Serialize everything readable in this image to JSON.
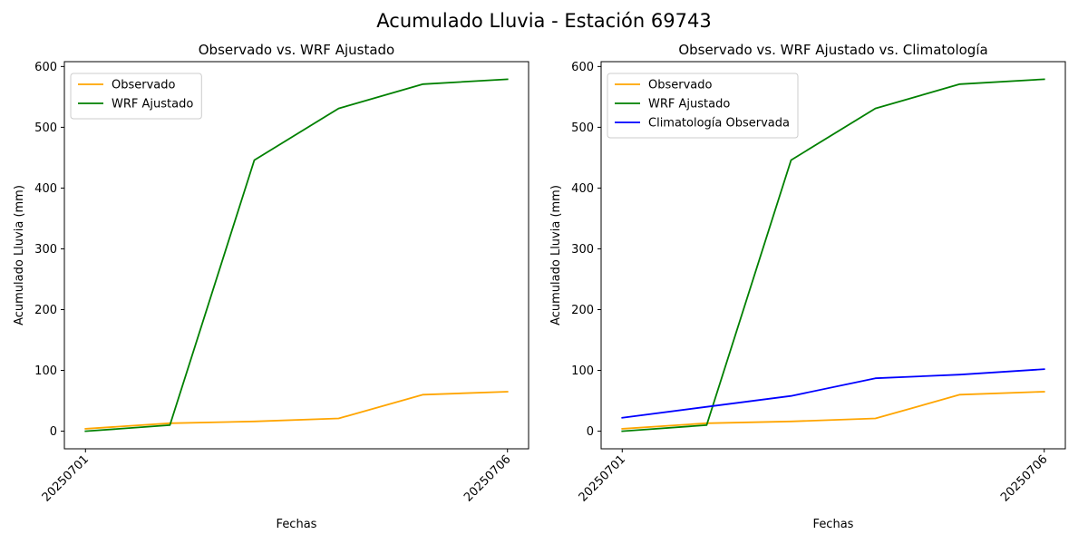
{
  "figure_title": "Acumulado Lluvia - Estación 69743",
  "chart_data": [
    {
      "type": "line",
      "title": "Observado vs. WRF Ajustado",
      "xlabel": "Fechas",
      "ylabel": "Acumulado Lluvia (mm)",
      "x": [
        0,
        1,
        2,
        3,
        4,
        5
      ],
      "x_tick_positions": [
        0,
        5
      ],
      "x_tick_labels": [
        "20250701",
        "20250706"
      ],
      "xlim": [
        -0.25,
        5.25
      ],
      "ylim": [
        -29,
        608
      ],
      "y_ticks": [
        0,
        100,
        200,
        300,
        400,
        500,
        600
      ],
      "legend": "top-left",
      "grid": false,
      "series": [
        {
          "name": "Observado",
          "color": "#ffa500",
          "values": [
            4,
            13,
            16,
            21,
            60,
            65
          ]
        },
        {
          "name": "WRF Ajustado",
          "color": "#008000",
          "values": [
            0,
            10,
            446,
            531,
            571,
            579
          ]
        }
      ]
    },
    {
      "type": "line",
      "title": "Observado vs. WRF Ajustado vs. Climatología",
      "xlabel": "Fechas",
      "ylabel": "Acumulado Lluvia (mm)",
      "x": [
        0,
        1,
        2,
        3,
        4,
        5
      ],
      "x_tick_positions": [
        0,
        5
      ],
      "x_tick_labels": [
        "20250701",
        "20250706"
      ],
      "xlim": [
        -0.25,
        5.25
      ],
      "ylim": [
        -29,
        608
      ],
      "y_ticks": [
        0,
        100,
        200,
        300,
        400,
        500,
        600
      ],
      "legend": "top-left",
      "grid": false,
      "series": [
        {
          "name": "Observado",
          "color": "#ffa500",
          "values": [
            4,
            13,
            16,
            21,
            60,
            65
          ]
        },
        {
          "name": "WRF Ajustado",
          "color": "#008000",
          "values": [
            0,
            10,
            446,
            531,
            571,
            579
          ]
        },
        {
          "name": "Climatología Observada",
          "color": "#0000ff",
          "values": [
            22,
            40,
            58,
            87,
            93,
            102
          ]
        }
      ]
    }
  ]
}
